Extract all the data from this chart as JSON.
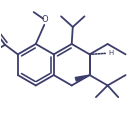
{
  "bg_color": "#ffffff",
  "bond_color": "#3d3d6b",
  "lw": 1.3,
  "figsize": [
    1.29,
    1.22
  ],
  "dpi": 100,
  "xlim": [
    -0.15,
    1.05
  ],
  "ylim": [
    -0.35,
    0.62
  ]
}
